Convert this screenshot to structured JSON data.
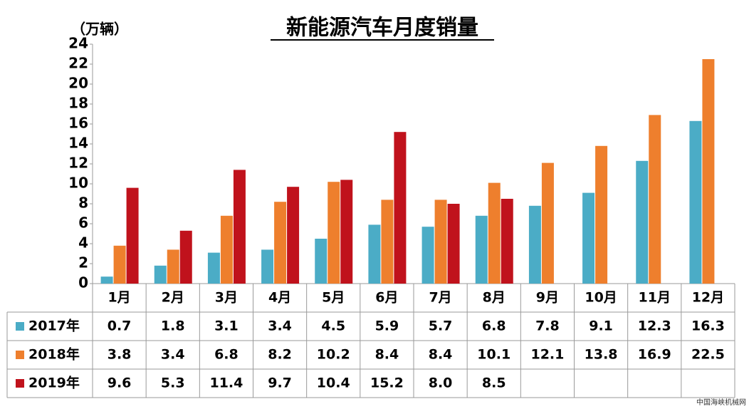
{
  "chart_data": {
    "type": "bar",
    "title": "新能源汽车月度销量",
    "y_label": "（万辆）",
    "categories": [
      "1月",
      "2月",
      "3月",
      "4月",
      "5月",
      "6月",
      "7月",
      "8月",
      "9月",
      "10月",
      "11月",
      "12月"
    ],
    "series": [
      {
        "name": "2017年",
        "color": "#4bacc6",
        "values": [
          0.7,
          1.8,
          3.1,
          3.4,
          4.5,
          5.9,
          5.7,
          6.8,
          7.8,
          9.1,
          12.3,
          16.3
        ],
        "value_labels": [
          "0.7",
          "1.8",
          "3.1",
          "3.4",
          "4.5",
          "5.9",
          "5.7",
          "6.8",
          "7.8",
          "9.1",
          "12.3",
          "16.3"
        ]
      },
      {
        "name": "2018年",
        "color": "#ee7f2d",
        "values": [
          3.8,
          3.4,
          6.8,
          8.2,
          10.2,
          8.4,
          8.4,
          10.1,
          12.1,
          13.8,
          16.9,
          22.5
        ],
        "value_labels": [
          "3.8",
          "3.4",
          "6.8",
          "8.2",
          "10.2",
          "8.4",
          "8.4",
          "10.1",
          "12.1",
          "13.8",
          "16.9",
          "22.5"
        ]
      },
      {
        "name": "2019年",
        "color": "#c0121c",
        "values": [
          9.6,
          5.3,
          11.4,
          9.7,
          10.4,
          15.2,
          8.0,
          8.5,
          null,
          null,
          null,
          null
        ],
        "value_labels": [
          "9.6",
          "5.3",
          "11.4",
          "9.7",
          "10.4",
          "15.2",
          "8.0",
          "8.5",
          null,
          null,
          null,
          null
        ]
      }
    ],
    "ylim": [
      0,
      24
    ],
    "yticks": [
      0,
      2,
      4,
      6,
      8,
      10,
      12,
      14,
      16,
      18,
      20,
      22,
      24
    ],
    "grid": false,
    "watermark": "中国海峡机械网"
  }
}
